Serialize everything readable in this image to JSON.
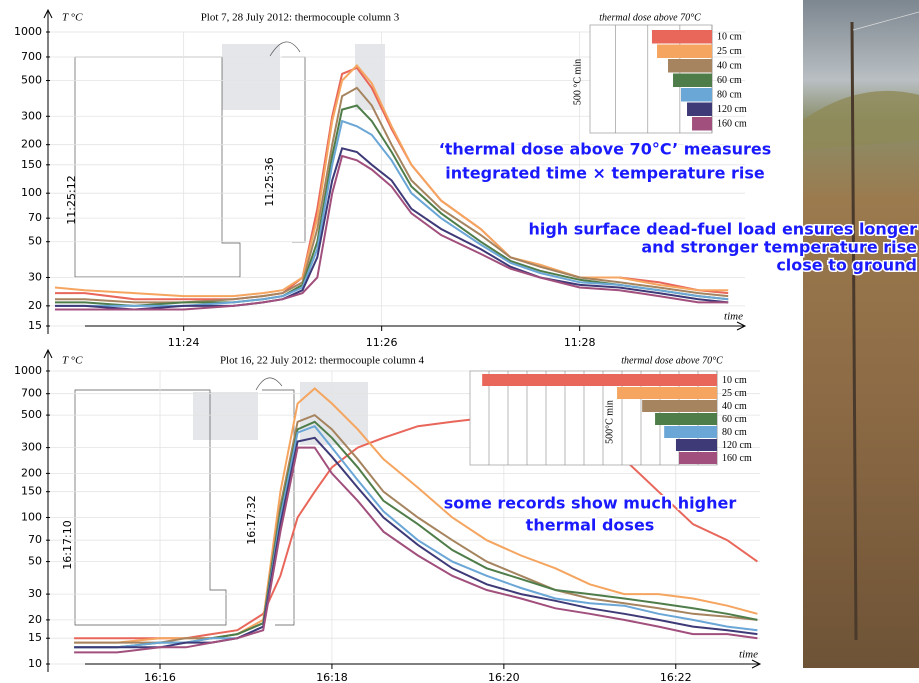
{
  "chart_data": [
    {
      "type": "line",
      "title": "Plot 7, 28 July 2012:   thermocouple column 3",
      "y_label": "T °C",
      "x_label": "time",
      "log_y": true,
      "grid": true,
      "ylim": [
        15,
        1000
      ],
      "yticks": [
        15,
        20,
        30,
        50,
        70,
        100,
        150,
        200,
        300,
        500,
        700,
        1000
      ],
      "xlim": [
        22.65,
        29.67
      ],
      "xticks": [
        {
          "value": 24,
          "label": "11:24"
        },
        {
          "value": 26,
          "label": "11:26"
        },
        {
          "value": 28,
          "label": "11:28"
        }
      ],
      "x": [
        22.7,
        23.0,
        23.5,
        24.0,
        24.5,
        24.8,
        25.0,
        25.2,
        25.35,
        25.5,
        25.6,
        25.75,
        25.9,
        26.1,
        26.3,
        26.6,
        27.0,
        27.3,
        27.6,
        28.0,
        28.4,
        28.8,
        29.2,
        29.5
      ],
      "series": [
        {
          "name": "10 cm",
          "color": "#e8665a",
          "values": [
            24,
            24,
            22,
            22,
            22,
            23,
            24,
            30,
            80,
            300,
            550,
            600,
            450,
            250,
            150,
            90,
            60,
            40,
            35,
            30,
            30,
            28,
            25,
            24
          ]
        },
        {
          "name": "25 cm",
          "color": "#f5a55f",
          "values": [
            26,
            25,
            24,
            23,
            23,
            24,
            25,
            30,
            70,
            280,
            500,
            620,
            480,
            260,
            150,
            90,
            60,
            40,
            36,
            30,
            30,
            27,
            25,
            25
          ]
        },
        {
          "name": "40 cm",
          "color": "#a5845f",
          "values": [
            22,
            22,
            21,
            21,
            22,
            23,
            24,
            28,
            60,
            200,
            400,
            450,
            350,
            200,
            120,
            80,
            55,
            40,
            35,
            30,
            28,
            26,
            24,
            23
          ]
        },
        {
          "name": "60 cm",
          "color": "#4f7d4a",
          "values": [
            21,
            21,
            20,
            21,
            21,
            22,
            23,
            27,
            50,
            170,
            330,
            350,
            280,
            180,
            110,
            75,
            50,
            38,
            33,
            29,
            27,
            25,
            23,
            22
          ]
        },
        {
          "name": "80 cm",
          "color": "#6aa6d6",
          "values": [
            20,
            20,
            20,
            20,
            21,
            22,
            23,
            26,
            45,
            150,
            280,
            260,
            230,
            160,
            100,
            70,
            48,
            37,
            32,
            28,
            27,
            25,
            23,
            22
          ]
        },
        {
          "name": "120 cm",
          "color": "#3e3a78",
          "values": [
            20,
            20,
            19,
            20,
            20,
            21,
            22,
            25,
            40,
            120,
            190,
            180,
            150,
            120,
            80,
            60,
            45,
            35,
            30,
            27,
            26,
            24,
            22,
            21
          ]
        },
        {
          "name": "160 cm",
          "color": "#a14f7c",
          "values": [
            19,
            19,
            19,
            19,
            20,
            21,
            22,
            24,
            30,
            100,
            170,
            160,
            140,
            110,
            75,
            55,
            42,
            34,
            30,
            26,
            25,
            23,
            21,
            21
          ]
        }
      ],
      "inset_labels": [
        "11:25:12",
        "11:25:36"
      ],
      "dose_chart": {
        "type": "bar",
        "title": "thermal dose above 70°C",
        "axis_label": "500 °C min",
        "categories": [
          "10 cm",
          "25 cm",
          "40 cm",
          "60 cm",
          "80 cm",
          "120 cm",
          "160 cm"
        ],
        "values": [
          935,
          856,
          685,
          607,
          483,
          389,
          311
        ],
        "colors": [
          "#e8665a",
          "#f5a55f",
          "#a5845f",
          "#4f7d4a",
          "#6aa6d6",
          "#3e3a78",
          "#a14f7c"
        ],
        "xlim": [
          0,
          1900
        ],
        "xticks": [
          0,
          500,
          1000,
          1500
        ]
      },
      "annotations": [
        "‘thermal dose above 70°C’ measures",
        "integrated time × temperature rise",
        "high surface dead-fuel load ensures longer",
        "and stronger temperature rise",
        "close to ground"
      ]
    },
    {
      "type": "line",
      "title": "Plot 16, 22 July 2012:   thermocouple column 4",
      "y_label": "T °C",
      "x_label": "time",
      "log_y": true,
      "grid": true,
      "ylim": [
        10,
        1000
      ],
      "yticks": [
        10,
        15,
        20,
        30,
        50,
        70,
        100,
        150,
        200,
        300,
        500,
        700,
        1000
      ],
      "xlim": [
        14.72,
        22.98
      ],
      "xticks": [
        {
          "value": 16,
          "label": "16:16"
        },
        {
          "value": 18,
          "label": "16:18"
        },
        {
          "value": 20,
          "label": "16:20"
        },
        {
          "value": 22,
          "label": "16:22"
        }
      ],
      "x": [
        15.0,
        15.5,
        16.0,
        16.3,
        16.6,
        16.9,
        17.2,
        17.4,
        17.6,
        17.8,
        18.0,
        18.3,
        18.6,
        19.0,
        19.4,
        19.8,
        20.2,
        20.6,
        21.0,
        21.4,
        21.8,
        22.2,
        22.6,
        22.95
      ],
      "series": [
        {
          "name": "10 cm",
          "color": "#e8665a",
          "values": [
            15,
            15,
            15,
            15,
            16,
            17,
            22,
            40,
            100,
            150,
            220,
            300,
            350,
            420,
            450,
            480,
            470,
            450,
            350,
            250,
            150,
            90,
            70,
            50
          ]
        },
        {
          "name": "25 cm",
          "color": "#f5a55f",
          "values": [
            14,
            14,
            15,
            15,
            15,
            16,
            20,
            150,
            600,
            760,
            600,
            400,
            250,
            160,
            100,
            70,
            55,
            45,
            35,
            30,
            30,
            28,
            25,
            22
          ]
        },
        {
          "name": "40 cm",
          "color": "#a5845f",
          "values": [
            14,
            14,
            14,
            15,
            15,
            16,
            19,
            120,
            450,
            500,
            400,
            250,
            150,
            100,
            70,
            50,
            40,
            32,
            28,
            26,
            24,
            22,
            21,
            20
          ]
        },
        {
          "name": "60 cm",
          "color": "#4f7d4a",
          "values": [
            13,
            13,
            14,
            14,
            15,
            16,
            19,
            110,
            400,
            450,
            350,
            220,
            130,
            90,
            60,
            45,
            38,
            32,
            30,
            28,
            26,
            24,
            22,
            20
          ]
        },
        {
          "name": "80 cm",
          "color": "#6aa6d6",
          "values": [
            13,
            13,
            14,
            14,
            15,
            15,
            18,
            100,
            380,
            420,
            300,
            180,
            110,
            70,
            50,
            40,
            33,
            28,
            26,
            25,
            22,
            20,
            18,
            17
          ]
        },
        {
          "name": "120 cm",
          "color": "#3e3a78",
          "values": [
            13,
            13,
            13,
            14,
            14,
            15,
            18,
            90,
            330,
            350,
            260,
            160,
            100,
            65,
            45,
            35,
            30,
            27,
            24,
            22,
            20,
            18,
            17,
            16
          ]
        },
        {
          "name": "160 cm",
          "color": "#a14f7c",
          "values": [
            12,
            12,
            13,
            13,
            14,
            15,
            17,
            80,
            300,
            300,
            200,
            130,
            80,
            55,
            40,
            32,
            28,
            24,
            22,
            20,
            18,
            16,
            16,
            15
          ]
        }
      ],
      "inset_labels": [
        "16:17:10",
        "16:17:32"
      ],
      "dose_chart": {
        "type": "bar",
        "title": "thermal dose above 70°C",
        "axis_label": "500°C min",
        "categories": [
          "10 cm",
          "25 cm",
          "40 cm",
          "60 cm",
          "80 cm",
          "120 cm",
          "160 cm"
        ],
        "values": [
          6180,
          2630,
          1970,
          1630,
          1390,
          1080,
          1000
        ],
        "colors": [
          "#e8665a",
          "#f5a55f",
          "#a5845f",
          "#4f7d4a",
          "#6aa6d6",
          "#3e3a78",
          "#a14f7c"
        ],
        "xlim": [
          0,
          6500
        ],
        "xticks": [
          0,
          500,
          1000,
          1500,
          2000,
          2500,
          3000,
          3500,
          4000,
          4500,
          5000,
          5500,
          6000
        ]
      },
      "annotations": [
        "some records show much higher",
        "thermal doses"
      ]
    }
  ]
}
